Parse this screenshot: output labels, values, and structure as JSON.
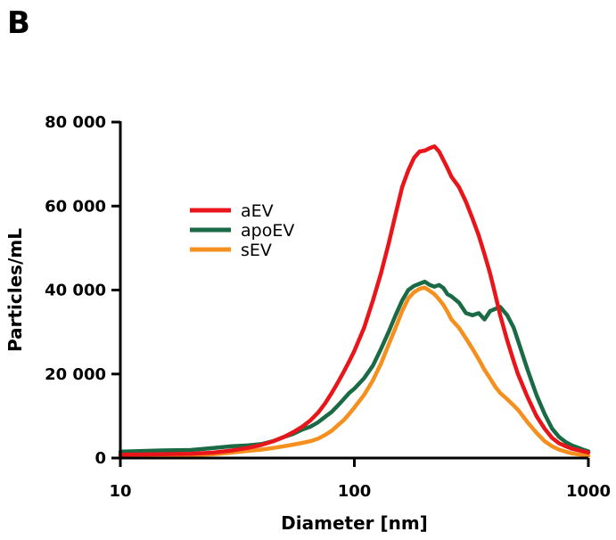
{
  "panel_label": "B",
  "chart_data": {
    "type": "line",
    "title": "",
    "xlabel": "Diameter [nm]",
    "ylabel": "Particles/mL",
    "xscale": "log",
    "xlim": [
      10,
      1000
    ],
    "ylim": [
      0,
      80000
    ],
    "xticks": [
      {
        "value": 10,
        "label": "10"
      },
      {
        "value": 100,
        "label": "100"
      },
      {
        "value": 1000,
        "label": "1000"
      }
    ],
    "yticks": [
      {
        "value": 0,
        "label": "0"
      },
      {
        "value": 20000,
        "label": "20 000"
      },
      {
        "value": 40000,
        "label": "40 000"
      },
      {
        "value": 60000,
        "label": "60 000"
      },
      {
        "value": 80000,
        "label": "80 000"
      }
    ],
    "legend_position": "upper-left",
    "grid": false,
    "series": [
      {
        "name": "aEV",
        "color": "#e8161b",
        "x": [
          10,
          15,
          20,
          25,
          30,
          35,
          40,
          45,
          50,
          55,
          60,
          65,
          70,
          75,
          80,
          85,
          90,
          95,
          100,
          110,
          120,
          130,
          140,
          150,
          160,
          170,
          180,
          190,
          200,
          210,
          220,
          230,
          240,
          250,
          260,
          280,
          300,
          320,
          340,
          360,
          380,
          400,
          420,
          450,
          480,
          500,
          550,
          600,
          650,
          700,
          750,
          800,
          850,
          900,
          950,
          1000
        ],
        "values": [
          800,
          900,
          1000,
          1300,
          1800,
          2400,
          3100,
          4000,
          5000,
          6200,
          7500,
          9000,
          10800,
          13000,
          15500,
          18000,
          20500,
          23000,
          25500,
          31000,
          37500,
          44000,
          51000,
          58000,
          64500,
          68500,
          71500,
          73000,
          73200,
          73800,
          74200,
          73000,
          71000,
          69000,
          67000,
          64500,
          61000,
          57000,
          53000,
          48500,
          44000,
          39000,
          34000,
          28000,
          23000,
          20000,
          14500,
          10000,
          7000,
          4800,
          3500,
          2800,
          2200,
          1900,
          1600,
          1300
        ]
      },
      {
        "name": "apoEV",
        "color": "#1a6b45",
        "x": [
          10,
          15,
          20,
          25,
          30,
          35,
          40,
          45,
          50,
          55,
          60,
          65,
          70,
          75,
          80,
          85,
          90,
          95,
          100,
          110,
          120,
          130,
          140,
          150,
          160,
          170,
          180,
          190,
          200,
          210,
          220,
          230,
          240,
          250,
          260,
          280,
          300,
          320,
          340,
          360,
          380,
          400,
          420,
          450,
          480,
          500,
          550,
          600,
          650,
          700,
          750,
          800,
          850,
          900,
          950,
          1000
        ],
        "values": [
          1500,
          1800,
          1900,
          2400,
          2800,
          3000,
          3300,
          4000,
          5000,
          5800,
          6800,
          7500,
          8500,
          9800,
          11000,
          12500,
          14000,
          15500,
          16500,
          19000,
          22000,
          26000,
          30000,
          34000,
          37500,
          40000,
          41000,
          41500,
          42000,
          41200,
          40800,
          41200,
          40500,
          39000,
          38500,
          37000,
          34500,
          34000,
          34500,
          33000,
          35000,
          35500,
          36000,
          34000,
          31000,
          28000,
          21000,
          15000,
          10500,
          7000,
          5000,
          3800,
          3000,
          2500,
          2000,
          1600
        ]
      },
      {
        "name": "sEV",
        "color": "#f5901e",
        "x": [
          10,
          15,
          20,
          25,
          30,
          35,
          40,
          45,
          50,
          55,
          60,
          65,
          70,
          75,
          80,
          85,
          90,
          95,
          100,
          110,
          120,
          130,
          140,
          150,
          160,
          170,
          180,
          190,
          200,
          210,
          220,
          230,
          240,
          250,
          260,
          280,
          300,
          320,
          340,
          360,
          380,
          400,
          420,
          450,
          480,
          500,
          550,
          600,
          650,
          700,
          750,
          800,
          850,
          900,
          950,
          1000
        ],
        "values": [
          400,
          500,
          700,
          900,
          1300,
          1700,
          2000,
          2400,
          2800,
          3200,
          3600,
          4000,
          4600,
          5500,
          6500,
          7800,
          9000,
          10500,
          12000,
          15000,
          18500,
          22500,
          27000,
          31000,
          35000,
          38000,
          39500,
          40300,
          40600,
          39800,
          39000,
          37800,
          36500,
          34800,
          33000,
          31000,
          28500,
          26000,
          23500,
          21000,
          19000,
          17000,
          15500,
          14000,
          12500,
          11500,
          8500,
          6000,
          4000,
          2800,
          2000,
          1500,
          1100,
          900,
          700,
          500
        ]
      }
    ]
  }
}
